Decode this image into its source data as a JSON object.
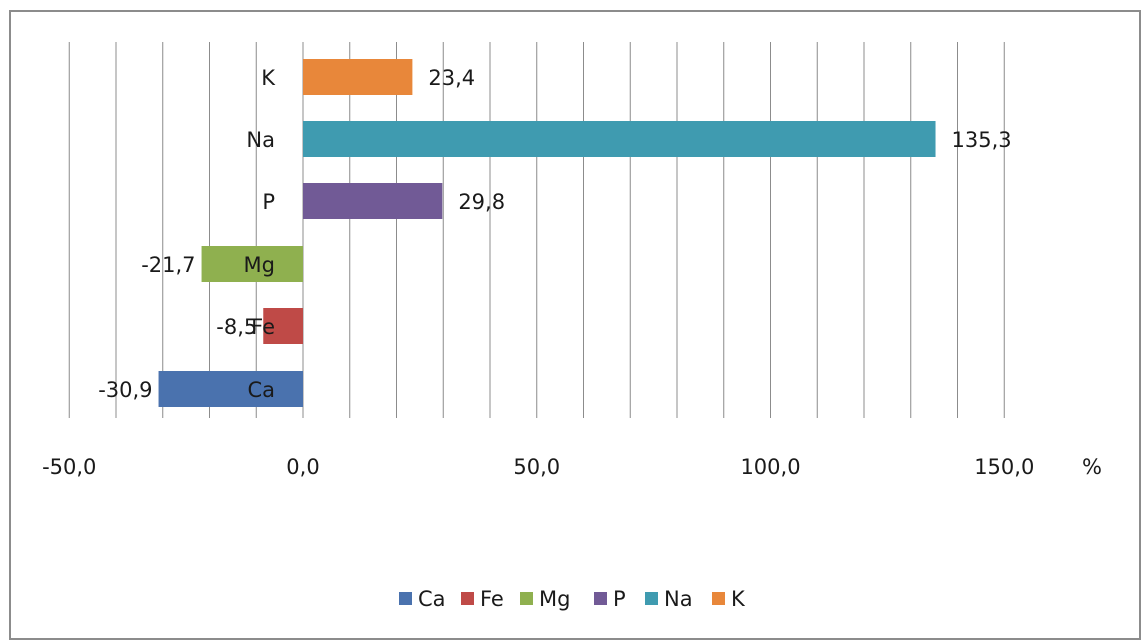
{
  "chart_data": {
    "type": "bar",
    "orientation": "horizontal",
    "categories": [
      "Ca",
      "Fe",
      "Mg",
      "P",
      "Na",
      "K"
    ],
    "values": [
      -30.9,
      -8.5,
      -21.7,
      29.8,
      135.3,
      23.4
    ],
    "value_labels": [
      "-30,9",
      "-8,5",
      "-21,7",
      "29,8",
      "135,3",
      "23,4"
    ],
    "colors": [
      "#4a72ae",
      "#bf4a47",
      "#8fb04f",
      "#715a96",
      "#3f9bb0",
      "#e8873a"
    ],
    "xlim": [
      -50,
      150
    ],
    "xticks": [
      -50,
      0,
      50,
      100,
      150
    ],
    "xtick_labels": [
      "-50,0",
      "0,0",
      "50,0",
      "100,0",
      "150,0"
    ],
    "xlabel": "%",
    "gridlines": "vertical",
    "legend": {
      "position": "bottom",
      "entries": [
        "Ca",
        "Fe",
        "Mg",
        "P",
        "Na",
        "K"
      ]
    }
  }
}
